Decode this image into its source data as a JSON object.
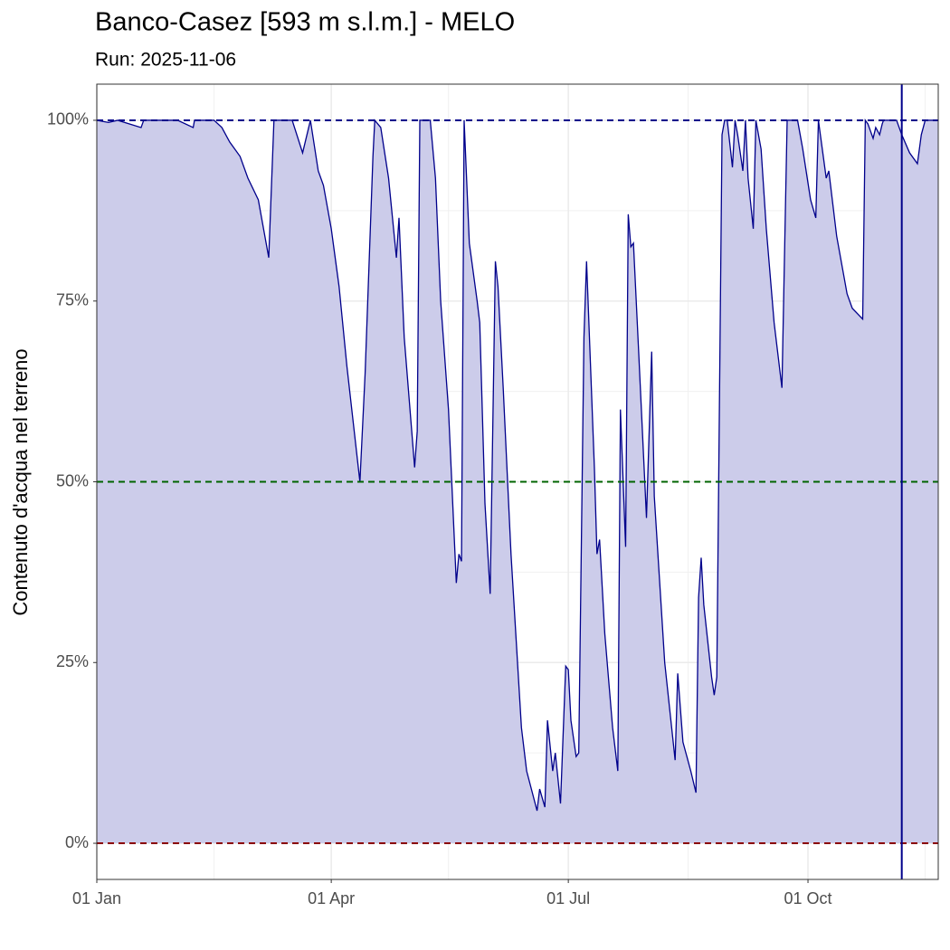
{
  "chart_data": {
    "type": "area",
    "title": "Banco-Casez [593 m s.l.m.] - MELO",
    "subtitle": "Run: 2025-11-06",
    "y_label": "Contenuto d'acqua nel terreno",
    "color": "#00008b",
    "fill": "#ccccea",
    "x": [
      0,
      4.5,
      8,
      17,
      18,
      31,
      37,
      37.5,
      45,
      48,
      51,
      55,
      58,
      62,
      66,
      68,
      75,
      79,
      82,
      85,
      87,
      90,
      93,
      96,
      101,
      103,
      106,
      106.7,
      109,
      112,
      115,
      116,
      118,
      122,
      123,
      124,
      128,
      130,
      132,
      135,
      138,
      139,
      140,
      141,
      143,
      146,
      147,
      149,
      151,
      153,
      154,
      156,
      159,
      161,
      163,
      165,
      169,
      170,
      172,
      173,
      175,
      176,
      178,
      180,
      181,
      182,
      184,
      185,
      187,
      188,
      191,
      192,
      193,
      195,
      198,
      200,
      201,
      203,
      204,
      205,
      206,
      208,
      211,
      213,
      214,
      218,
      222,
      223,
      225,
      228,
      230,
      231,
      232,
      233,
      236,
      237,
      238,
      240,
      241,
      242,
      244,
      245,
      246,
      248,
      249,
      250,
      252,
      253,
      255,
      257,
      260,
      263,
      265,
      269,
      271,
      274,
      276,
      277,
      280,
      281,
      284,
      288,
      290,
      294,
      295,
      296,
      298,
      299,
      300.5,
      301.5,
      302,
      307,
      309,
      312,
      315,
      316.5,
      318,
      323
    ],
    "values": [
      100,
      99.7,
      100,
      99,
      100,
      100,
      99,
      100,
      100,
      99,
      97,
      95,
      92,
      89,
      81,
      100,
      100,
      95.5,
      100,
      93,
      91,
      85,
      77,
      66,
      50,
      65,
      95,
      100,
      99,
      92,
      81,
      86.5,
      70,
      52,
      57,
      100,
      100,
      92,
      75,
      60,
      36,
      40,
      39,
      100,
      83,
      75,
      72,
      47,
      34.5,
      80.5,
      77,
      63,
      40,
      28,
      16,
      10,
      4.5,
      7.5,
      5,
      17,
      10,
      12.5,
      5.5,
      24.5,
      24,
      17,
      12,
      12.5,
      70,
      80.5,
      52,
      40,
      42,
      29,
      16,
      10,
      60,
      41,
      87,
      82.5,
      83,
      68,
      45,
      68,
      48,
      25,
      11.5,
      23.5,
      14,
      10,
      7,
      34,
      39.5,
      33,
      23,
      20.5,
      23,
      98,
      100,
      100,
      93.5,
      100,
      98,
      93,
      100,
      92,
      85,
      100,
      96,
      85,
      72,
      63,
      100,
      100,
      96,
      89,
      86.5,
      100,
      92,
      93,
      84,
      76,
      74,
      72.5,
      100,
      99.5,
      97.5,
      99,
      98,
      99.5,
      100,
      100,
      98,
      95.5,
      94,
      98,
      100,
      100
    ],
    "xlim": [
      0,
      323
    ],
    "xticks": [
      {
        "value": 0,
        "label": "01 Jan"
      },
      {
        "value": 90,
        "label": "01 Apr"
      },
      {
        "value": 181,
        "label": "01 Jul"
      },
      {
        "value": 273,
        "label": "01 Oct"
      }
    ],
    "xminor": [
      45,
      135,
      227,
      318
    ],
    "ylim": [
      -5,
      105
    ],
    "yticks": [
      {
        "value": 0,
        "label": "0%"
      },
      {
        "value": 25,
        "label": "25%"
      },
      {
        "value": 50,
        "label": "50%"
      },
      {
        "value": 75,
        "label": "75%"
      },
      {
        "value": 100,
        "label": "100%"
      }
    ],
    "hlines": [
      {
        "value": 100,
        "color": "#00008b"
      },
      {
        "value": 50,
        "color": "#006400"
      },
      {
        "value": 0,
        "color": "#8b0000"
      }
    ],
    "vline": {
      "value": 309,
      "color": "#00008b"
    },
    "grid": true
  }
}
